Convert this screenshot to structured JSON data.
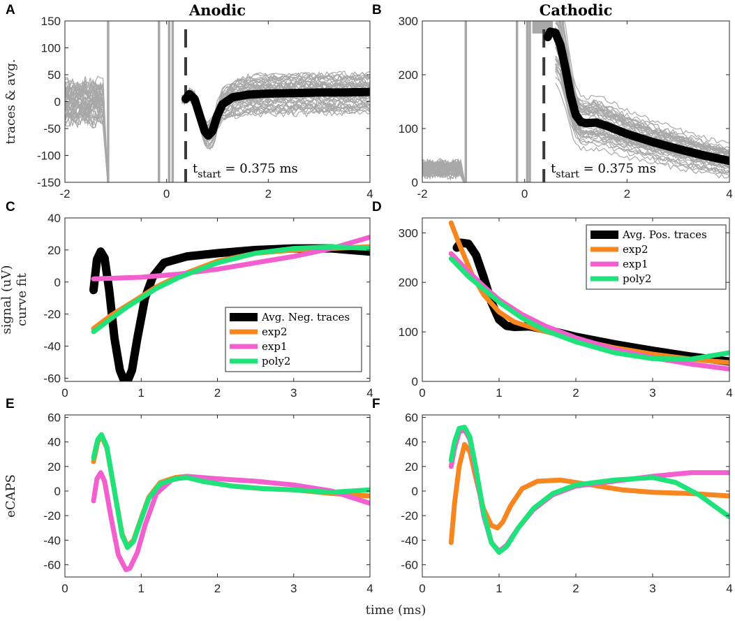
{
  "figure": {
    "xlabel": "time (ms)"
  },
  "colors": {
    "black": "#000000",
    "gray": "#a8a8a8",
    "exp2": "#f7861e",
    "exp1": "#f35fcf",
    "poly2": "#1fe27a",
    "dash": "#3a3a3a"
  },
  "chart_data": [
    {
      "id": "A",
      "panel_label": "A",
      "type": "line",
      "title": "Anodic",
      "ylabel": [
        "traces & avg."
      ],
      "xlim": [
        -2,
        4
      ],
      "ylim": [
        -150,
        150
      ],
      "xticks": [
        -2,
        0,
        2,
        4
      ],
      "yticks": [
        -150,
        -100,
        -50,
        0,
        50,
        100,
        150
      ],
      "t_start": 0.375,
      "annotation_main": "t",
      "annotation_sub": "start",
      "annotation_rest": " = 0.375 ms",
      "series": [
        {
          "name": "Avg. Neg. traces",
          "color": "black",
          "x": [
            0.375,
            0.45,
            0.55,
            0.65,
            0.75,
            0.82,
            0.9,
            1.0,
            1.1,
            1.3,
            1.6,
            2.0,
            2.5,
            3.0,
            3.5,
            4.0
          ],
          "y": [
            5,
            14,
            5,
            -25,
            -55,
            -63,
            -55,
            -25,
            -5,
            8,
            13,
            15,
            16,
            17,
            17,
            18
          ]
        }
      ]
    },
    {
      "id": "B",
      "panel_label": "B",
      "type": "line",
      "title": "Cathodic",
      "ylabel": [],
      "xlim": [
        -2,
        4
      ],
      "ylim": [
        0,
        300
      ],
      "xticks": [
        -2,
        0,
        2,
        4
      ],
      "yticks": [
        0,
        100,
        200,
        300
      ],
      "t_start": 0.375,
      "annotation_main": "t",
      "annotation_sub": "start",
      "annotation_rest": " = 0.375 ms",
      "series": [
        {
          "name": "Avg. Pos. traces",
          "color": "black",
          "x": [
            0.45,
            0.5,
            0.6,
            0.7,
            0.8,
            0.9,
            1.0,
            1.1,
            1.2,
            1.4,
            1.6,
            2.0,
            2.5,
            3.0,
            3.5,
            4.0
          ],
          "y": [
            270,
            280,
            278,
            255,
            210,
            160,
            125,
            112,
            110,
            111,
            105,
            90,
            75,
            62,
            50,
            40
          ]
        }
      ]
    },
    {
      "id": "C",
      "panel_label": "C",
      "type": "line",
      "ylabel": [
        "signal (uV)",
        "curve fit"
      ],
      "xlim": [
        0,
        4
      ],
      "ylim": [
        -62,
        40
      ],
      "xticks": [
        0,
        1,
        2,
        3,
        4
      ],
      "yticks": [
        -60,
        -40,
        -20,
        0,
        20,
        40
      ],
      "legend_position": "bottom-right",
      "series": [
        {
          "name": "Avg. Neg. traces",
          "color": "black",
          "x": [
            0.375,
            0.42,
            0.47,
            0.52,
            0.58,
            0.65,
            0.72,
            0.78,
            0.82,
            0.88,
            0.95,
            1.05,
            1.15,
            1.3,
            1.6,
            2.0,
            2.5,
            3.0,
            3.5,
            4.0
          ],
          "y": [
            -5,
            14,
            19,
            15,
            -5,
            -35,
            -55,
            -62,
            -62,
            -55,
            -35,
            -10,
            3,
            12,
            16,
            18,
            20,
            21,
            21,
            19
          ]
        },
        {
          "name": "exp2",
          "color": "exp2",
          "x": [
            0.375,
            0.6,
            0.8,
            1.0,
            1.2,
            1.5,
            2.0,
            2.5,
            3.0,
            3.5,
            4.0
          ],
          "y": [
            -29,
            -21,
            -15,
            -9,
            -3,
            4,
            13,
            18,
            20,
            21,
            22
          ]
        },
        {
          "name": "exp1",
          "color": "exp1",
          "x": [
            0.375,
            1.0,
            1.5,
            2.0,
            2.5,
            3.0,
            3.5,
            4.0
          ],
          "y": [
            2,
            3,
            5,
            8,
            12,
            16,
            21,
            28
          ]
        },
        {
          "name": "poly2",
          "color": "poly2",
          "x": [
            0.375,
            0.6,
            0.8,
            1.0,
            1.2,
            1.5,
            2.0,
            2.5,
            3.0,
            3.5,
            4.0
          ],
          "y": [
            -31,
            -23,
            -16,
            -10,
            -4,
            3,
            12,
            18,
            21,
            22,
            21
          ]
        }
      ]
    },
    {
      "id": "D",
      "panel_label": "D",
      "type": "line",
      "ylabel": [],
      "xlim": [
        0,
        4
      ],
      "ylim": [
        0,
        330
      ],
      "xticks": [
        0,
        1,
        2,
        3,
        4
      ],
      "yticks": [
        0,
        100,
        200,
        300
      ],
      "legend_position": "top-right",
      "series": [
        {
          "name": "Avg. Pos. traces",
          "color": "black",
          "x": [
            0.45,
            0.5,
            0.6,
            0.7,
            0.8,
            0.9,
            1.0,
            1.1,
            1.2,
            1.4,
            1.6,
            2.0,
            2.5,
            3.0,
            3.5,
            4.0
          ],
          "y": [
            270,
            280,
            278,
            255,
            210,
            160,
            125,
            112,
            110,
            111,
            105,
            90,
            75,
            62,
            50,
            40
          ]
        },
        {
          "name": "exp2",
          "color": "exp2",
          "x": [
            0.375,
            0.5,
            0.65,
            0.8,
            1.0,
            1.2,
            1.5,
            2.0,
            2.5,
            3.0,
            3.5,
            4.0
          ],
          "y": [
            320,
            270,
            215,
            175,
            140,
            120,
            105,
            85,
            68,
            55,
            45,
            38
          ]
        },
        {
          "name": "exp1",
          "color": "exp1",
          "x": [
            0.375,
            0.6,
            0.8,
            1.0,
            1.3,
            1.6,
            2.0,
            2.5,
            3.0,
            3.5,
            4.0
          ],
          "y": [
            258,
            222,
            192,
            165,
            135,
            112,
            88,
            65,
            48,
            35,
            25
          ]
        },
        {
          "name": "poly2",
          "color": "poly2",
          "x": [
            0.375,
            0.6,
            0.8,
            1.0,
            1.3,
            1.6,
            2.0,
            2.5,
            3.0,
            3.5,
            4.0
          ],
          "y": [
            248,
            212,
            186,
            160,
            128,
            103,
            80,
            58,
            46,
            45,
            58
          ]
        }
      ]
    },
    {
      "id": "E",
      "panel_label": "E",
      "type": "line",
      "ylabel": [
        "eCAPS"
      ],
      "xlim": [
        0,
        4
      ],
      "ylim": [
        -70,
        62
      ],
      "xticks": [
        0,
        1,
        2,
        3,
        4
      ],
      "yticks": [
        -60,
        -40,
        -20,
        0,
        20,
        40,
        60
      ],
      "series": [
        {
          "name": "exp2",
          "color": "exp2",
          "x": [
            0.375,
            0.43,
            0.48,
            0.55,
            0.65,
            0.75,
            0.82,
            0.9,
            1.0,
            1.1,
            1.25,
            1.45,
            1.6,
            1.8,
            2.2,
            2.6,
            3.0,
            3.5,
            4.0
          ],
          "y": [
            24,
            40,
            45,
            35,
            0,
            -35,
            -45,
            -40,
            -22,
            -5,
            7,
            11,
            12,
            8,
            4,
            2,
            1,
            -2,
            -4
          ]
        },
        {
          "name": "exp1",
          "color": "exp1",
          "x": [
            0.375,
            0.42,
            0.47,
            0.52,
            0.6,
            0.7,
            0.8,
            0.85,
            0.95,
            1.05,
            1.2,
            1.4,
            1.6,
            2.0,
            2.5,
            3.0,
            3.5,
            4.0
          ],
          "y": [
            -8,
            10,
            15,
            8,
            -20,
            -52,
            -64,
            -63,
            -50,
            -28,
            -2,
            9,
            12,
            10,
            8,
            5,
            0,
            -10
          ]
        },
        {
          "name": "poly2",
          "color": "poly2",
          "x": [
            0.375,
            0.43,
            0.48,
            0.55,
            0.65,
            0.75,
            0.82,
            0.9,
            1.0,
            1.1,
            1.25,
            1.45,
            1.6,
            1.8,
            2.2,
            2.6,
            3.0,
            3.5,
            4.0
          ],
          "y": [
            27,
            42,
            46,
            36,
            0,
            -36,
            -46,
            -41,
            -23,
            -6,
            6,
            10,
            11,
            8,
            4,
            2,
            1,
            -1,
            1
          ]
        }
      ]
    },
    {
      "id": "F",
      "panel_label": "F",
      "type": "line",
      "ylabel": [],
      "xlim": [
        0,
        4
      ],
      "ylim": [
        -70,
        62
      ],
      "xticks": [
        0,
        1,
        2,
        3,
        4
      ],
      "yticks": [
        -60,
        -40,
        -20,
        0,
        20,
        40,
        60
      ],
      "series": [
        {
          "name": "exp2",
          "color": "exp2",
          "x": [
            0.375,
            0.42,
            0.48,
            0.55,
            0.62,
            0.7,
            0.8,
            0.9,
            0.98,
            1.05,
            1.15,
            1.3,
            1.5,
            1.8,
            2.2,
            2.6,
            3.0,
            3.5,
            4.0
          ],
          "y": [
            -42,
            -10,
            20,
            38,
            32,
            10,
            -15,
            -28,
            -30,
            -25,
            -12,
            2,
            8,
            9,
            5,
            1,
            -1,
            -2,
            -4
          ]
        },
        {
          "name": "exp1",
          "color": "exp1",
          "x": [
            0.375,
            0.42,
            0.48,
            0.55,
            0.62,
            0.7,
            0.8,
            0.9,
            1.0,
            1.1,
            1.25,
            1.45,
            1.7,
            2.0,
            2.5,
            3.0,
            3.5,
            4.0
          ],
          "y": [
            20,
            35,
            48,
            50,
            42,
            15,
            -20,
            -42,
            -49,
            -44,
            -30,
            -15,
            -3,
            4,
            8,
            12,
            15,
            15
          ]
        },
        {
          "name": "poly2",
          "color": "poly2",
          "x": [
            0.375,
            0.42,
            0.48,
            0.55,
            0.62,
            0.7,
            0.8,
            0.9,
            1.0,
            1.1,
            1.25,
            1.45,
            1.7,
            2.0,
            2.5,
            3.0,
            3.3,
            3.6,
            4.0
          ],
          "y": [
            25,
            40,
            51,
            52,
            44,
            18,
            -18,
            -42,
            -50,
            -45,
            -30,
            -14,
            -2,
            5,
            9,
            11,
            7,
            -3,
            -21
          ]
        }
      ]
    }
  ]
}
